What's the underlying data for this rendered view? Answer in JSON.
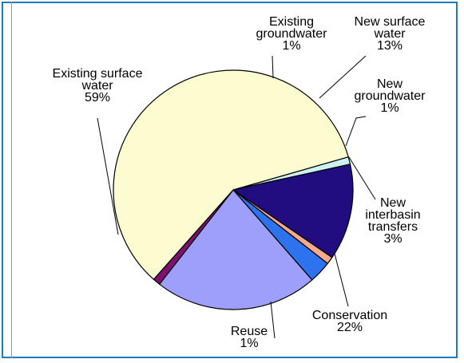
{
  "chart_data": {
    "type": "pie",
    "title": "",
    "slices": [
      {
        "key": "existing_groundwater",
        "label_lines": [
          "Existing",
          "groundwater",
          "1%"
        ],
        "value": 1,
        "color": "#ccf3f1"
      },
      {
        "key": "new_surface_water",
        "label_lines": [
          "New surface",
          "water",
          "13%"
        ],
        "value": 13,
        "color": "#220d80"
      },
      {
        "key": "new_groundwater",
        "label_lines": [
          "New",
          "groundwater",
          "1%"
        ],
        "value": 1,
        "color": "#f7a98f"
      },
      {
        "key": "new_interbasin_transfers",
        "label_lines": [
          "New",
          "interbasin",
          "transfers",
          "3%"
        ],
        "value": 3,
        "color": "#2d73ee"
      },
      {
        "key": "conservation",
        "label_lines": [
          "Conservation",
          "22%"
        ],
        "value": 22,
        "color": "#9d9ffb"
      },
      {
        "key": "reuse",
        "label_lines": [
          "Reuse",
          "1%"
        ],
        "value": 1,
        "color": "#7d1071"
      },
      {
        "key": "existing_surface_water",
        "label_lines": [
          "Existing surface",
          "water",
          "59%"
        ],
        "value": 59,
        "color": "#fdfbd0"
      }
    ],
    "legend": "none"
  },
  "colors": {
    "frame_border": "#1a7bbd",
    "slice_outline": "#000000"
  }
}
